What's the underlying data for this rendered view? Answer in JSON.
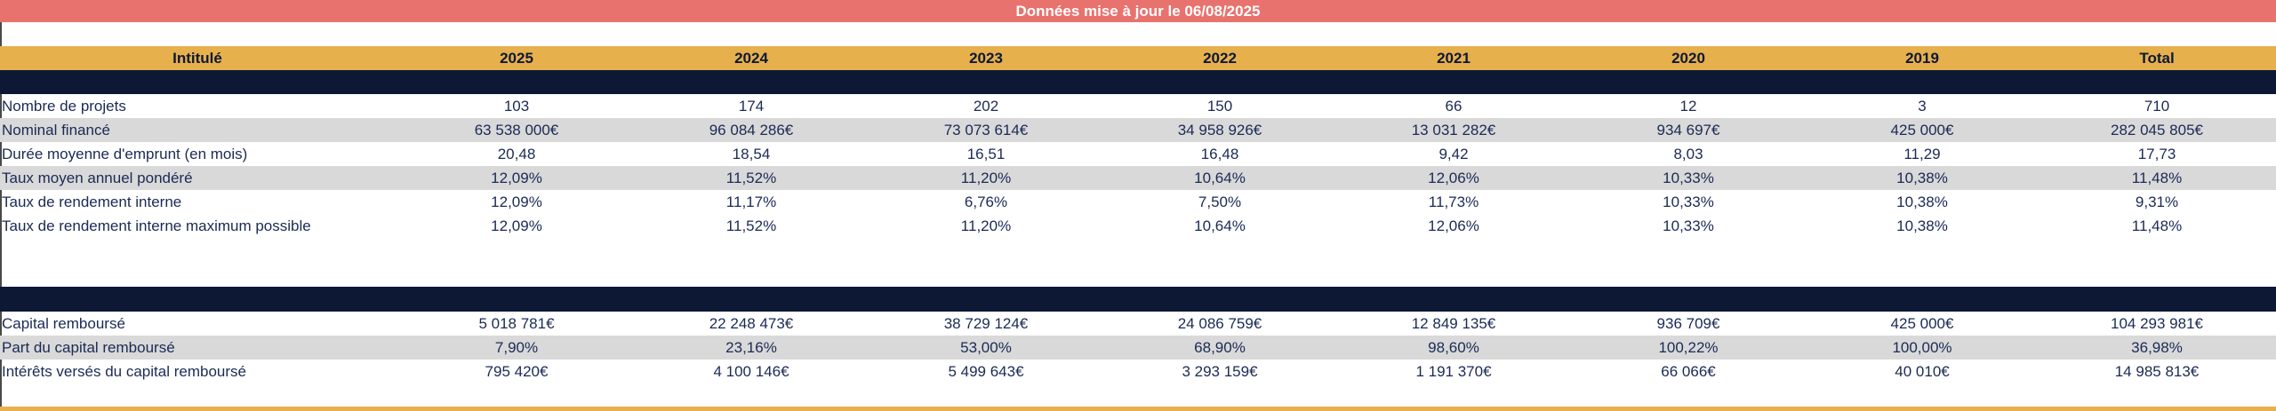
{
  "banner": "Données mise à jour le 06/08/2025",
  "header": [
    "Intitulé",
    "2025",
    "2024",
    "2023",
    "2022",
    "2021",
    "2020",
    "2019",
    "Total"
  ],
  "section1": [
    {
      "label": "Nombre de projets",
      "values": [
        "103",
        "174",
        "202",
        "150",
        "66",
        "12",
        "3",
        "710"
      ]
    },
    {
      "label": "Nominal financé",
      "values": [
        "63 538 000€",
        "96 084 286€",
        "73 073 614€",
        "34 958 926€",
        "13 031 282€",
        "934 697€",
        "425 000€",
        "282 045 805€"
      ]
    },
    {
      "label": "Durée moyenne d'emprunt (en mois)",
      "values": [
        "20,48",
        "18,54",
        "16,51",
        "16,48",
        "9,42",
        "8,03",
        "11,29",
        "17,73"
      ]
    },
    {
      "label": "Taux moyen annuel pondéré",
      "values": [
        "12,09%",
        "11,52%",
        "11,20%",
        "10,64%",
        "12,06%",
        "10,33%",
        "10,38%",
        "11,48%"
      ]
    },
    {
      "label": "Taux de rendement interne",
      "values": [
        "12,09%",
        "11,17%",
        "6,76%",
        "7,50%",
        "11,73%",
        "10,33%",
        "10,38%",
        "9,31%"
      ]
    },
    {
      "label": "Taux de rendement interne maximum possible",
      "values": [
        "12,09%",
        "11,52%",
        "11,20%",
        "10,64%",
        "12,06%",
        "10,33%",
        "10,38%",
        "11,48%"
      ]
    }
  ],
  "section2": [
    {
      "label": "Capital remboursé",
      "values": [
        "5 018 781€",
        "22 248 473€",
        "38 729 124€",
        "24 086 759€",
        "12 849 135€",
        "936 709€",
        "425 000€",
        "104 293 981€"
      ]
    },
    {
      "label": "Part du capital remboursé",
      "values": [
        "7,90%",
        "23,16%",
        "53,00%",
        "68,90%",
        "98,60%",
        "100,22%",
        "100,00%",
        "36,98%"
      ]
    },
    {
      "label": "Intérêts versés du capital remboursé",
      "values": [
        "795 420€",
        "4 100 146€",
        "5 499 643€",
        "3 293 159€",
        "1 191 370€",
        "66 066€",
        "40 010€",
        "14 985 813€"
      ]
    }
  ]
}
